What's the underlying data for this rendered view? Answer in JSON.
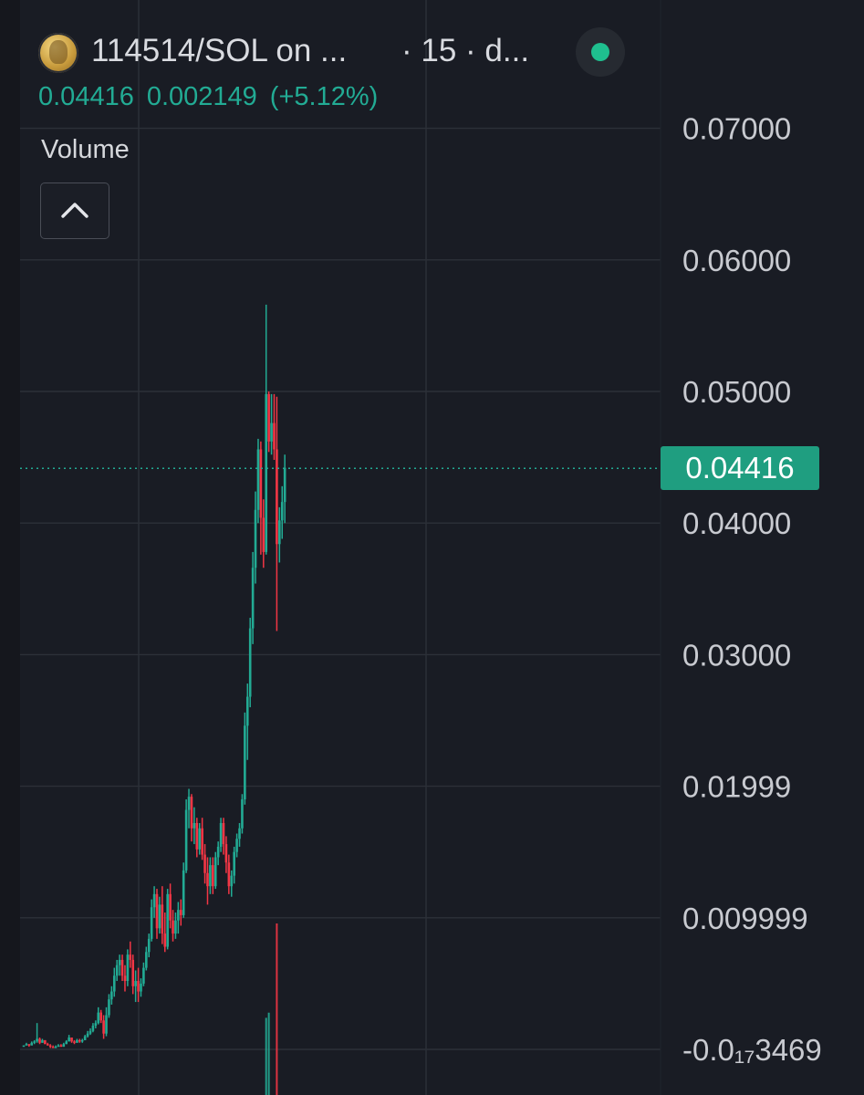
{
  "header": {
    "symbol_title": "114514/SOL on ...",
    "symbol_meta": "· 15 · d...",
    "last_price": "0.04416",
    "change": "0.002149",
    "change_pct": "(+5.12%)",
    "status_color": "#1fbf8f"
  },
  "volume": {
    "label": "Volume",
    "collapse_icon": "chevron-up-icon"
  },
  "current_price_badge": "0.04416",
  "colors": {
    "background": "#191c24",
    "grid": "#2c3038",
    "up": "#22ab94",
    "down": "#f23645",
    "axis_text": "#c8cad0",
    "badge": "#1f9e80"
  },
  "chart_data": {
    "type": "candlestick",
    "y_axis_labels": [
      {
        "value": 0.07,
        "label": "0.07000"
      },
      {
        "value": 0.06,
        "label": "0.06000"
      },
      {
        "value": 0.05,
        "label": "0.05000"
      },
      {
        "value": 0.04,
        "label": "0.04000"
      },
      {
        "value": 0.03,
        "label": "0.03000"
      },
      {
        "value": 0.02,
        "label": "0.01999"
      },
      {
        "value": 0.01,
        "label": "0.009999"
      },
      {
        "value": 0.0,
        "label": "-0.0₁₇3469"
      }
    ],
    "ylim": [
      -0.0006,
      0.0736
    ],
    "last_price": 0.04416,
    "grid": true,
    "candles": [
      [
        0.0002,
        0.0003,
        0.0002,
        0.0003
      ],
      [
        0.0003,
        0.0005,
        0.0003,
        0.0004
      ],
      [
        0.0004,
        0.0004,
        0.0002,
        0.0003
      ],
      [
        0.0003,
        0.0006,
        0.0003,
        0.0005
      ],
      [
        0.0005,
        0.0007,
        0.0004,
        0.0006
      ],
      [
        0.0006,
        0.002,
        0.0005,
        0.0008
      ],
      [
        0.0008,
        0.0009,
        0.0004,
        0.0005
      ],
      [
        0.0005,
        0.0008,
        0.0005,
        0.0007
      ],
      [
        0.0007,
        0.0007,
        0.0004,
        0.0004
      ],
      [
        0.0004,
        0.0005,
        0.0003,
        0.0003
      ],
      [
        0.0003,
        0.0004,
        0.0001,
        0.0002
      ],
      [
        0.0002,
        0.0003,
        0.0001,
        0.0001
      ],
      [
        0.0001,
        0.0003,
        0.0001,
        0.0002
      ],
      [
        0.0002,
        0.0004,
        0.0002,
        0.0003
      ],
      [
        0.0003,
        0.0004,
        0.0002,
        0.0002
      ],
      [
        0.0002,
        0.0005,
        0.0002,
        0.0004
      ],
      [
        0.0004,
        0.0007,
        0.0004,
        0.0006
      ],
      [
        0.0006,
        0.0011,
        0.0006,
        0.0009
      ],
      [
        0.0009,
        0.0009,
        0.0005,
        0.0006
      ],
      [
        0.0006,
        0.0007,
        0.0004,
        0.0005
      ],
      [
        0.0005,
        0.0008,
        0.0005,
        0.0007
      ],
      [
        0.0007,
        0.0008,
        0.0005,
        0.0006
      ],
      [
        0.0006,
        0.0008,
        0.0005,
        0.0007
      ],
      [
        0.0007,
        0.0011,
        0.0007,
        0.001
      ],
      [
        0.001,
        0.0014,
        0.0009,
        0.0012
      ],
      [
        0.0012,
        0.0016,
        0.0011,
        0.0014
      ],
      [
        0.0014,
        0.002,
        0.0013,
        0.0018
      ],
      [
        0.0018,
        0.0022,
        0.0016,
        0.002
      ],
      [
        0.002,
        0.0032,
        0.0019,
        0.0028
      ],
      [
        0.0028,
        0.003,
        0.002,
        0.0022
      ],
      [
        0.0022,
        0.0026,
        0.0008,
        0.0012
      ],
      [
        0.0012,
        0.0032,
        0.001,
        0.0026
      ],
      [
        0.0026,
        0.0042,
        0.0024,
        0.0038
      ],
      [
        0.0038,
        0.0048,
        0.0034,
        0.0044
      ],
      [
        0.0044,
        0.0062,
        0.004,
        0.0056
      ],
      [
        0.0056,
        0.0068,
        0.0052,
        0.0064
      ],
      [
        0.0064,
        0.0072,
        0.0056,
        0.0068
      ],
      [
        0.0068,
        0.0072,
        0.0052,
        0.0056
      ],
      [
        0.0056,
        0.0064,
        0.0044,
        0.0052
      ],
      [
        0.0052,
        0.0076,
        0.0048,
        0.0072
      ],
      [
        0.0072,
        0.0082,
        0.0062,
        0.0068
      ],
      [
        0.0068,
        0.0072,
        0.0042,
        0.0048
      ],
      [
        0.0048,
        0.006,
        0.0036,
        0.0052
      ],
      [
        0.0052,
        0.0062,
        0.0036,
        0.0044
      ],
      [
        0.0044,
        0.0054,
        0.004,
        0.005
      ],
      [
        0.005,
        0.0066,
        0.0048,
        0.0062
      ],
      [
        0.0062,
        0.0078,
        0.006,
        0.0074
      ],
      [
        0.0074,
        0.0088,
        0.007,
        0.0084
      ],
      [
        0.0084,
        0.0114,
        0.0082,
        0.0108
      ],
      [
        0.0108,
        0.0124,
        0.01,
        0.0118
      ],
      [
        0.0118,
        0.0122,
        0.0084,
        0.0092
      ],
      [
        0.0092,
        0.0116,
        0.0088,
        0.011
      ],
      [
        0.011,
        0.0124,
        0.008,
        0.0088
      ],
      [
        0.0088,
        0.0104,
        0.0074,
        0.0078
      ],
      [
        0.0078,
        0.0122,
        0.0076,
        0.0118
      ],
      [
        0.0118,
        0.0126,
        0.0092,
        0.0098
      ],
      [
        0.0098,
        0.0106,
        0.0082,
        0.0088
      ],
      [
        0.0088,
        0.0104,
        0.0084,
        0.0098
      ],
      [
        0.0098,
        0.0112,
        0.0088,
        0.0106
      ],
      [
        0.0106,
        0.0114,
        0.0094,
        0.0102
      ],
      [
        0.0102,
        0.0142,
        0.01,
        0.0136
      ],
      [
        0.0136,
        0.019,
        0.0134,
        0.0182
      ],
      [
        0.0182,
        0.0198,
        0.0168,
        0.0192
      ],
      [
        0.0192,
        0.0194,
        0.0158,
        0.0168
      ],
      [
        0.0168,
        0.0184,
        0.0156,
        0.0172
      ],
      [
        0.0172,
        0.0176,
        0.0146,
        0.0152
      ],
      [
        0.0152,
        0.0172,
        0.0148,
        0.0168
      ],
      [
        0.0168,
        0.0176,
        0.0144,
        0.0148
      ],
      [
        0.0148,
        0.0156,
        0.0126,
        0.0134
      ],
      [
        0.0134,
        0.0146,
        0.011,
        0.0124
      ],
      [
        0.0124,
        0.0146,
        0.0118,
        0.014
      ],
      [
        0.014,
        0.0146,
        0.0118,
        0.0124
      ],
      [
        0.0124,
        0.015,
        0.0122,
        0.0146
      ],
      [
        0.0146,
        0.0158,
        0.014,
        0.0154
      ],
      [
        0.0154,
        0.0176,
        0.015,
        0.0172
      ],
      [
        0.0172,
        0.0176,
        0.0148,
        0.0156
      ],
      [
        0.0156,
        0.0162,
        0.0134,
        0.0142
      ],
      [
        0.0142,
        0.0148,
        0.0118,
        0.0124
      ],
      [
        0.0124,
        0.0136,
        0.0116,
        0.0132
      ],
      [
        0.0132,
        0.0154,
        0.0126,
        0.015
      ],
      [
        0.015,
        0.0164,
        0.0146,
        0.016
      ],
      [
        0.016,
        0.0172,
        0.0154,
        0.0168
      ],
      [
        0.0168,
        0.0194,
        0.0164,
        0.019
      ],
      [
        0.019,
        0.0256,
        0.0186,
        0.0246
      ],
      [
        0.0246,
        0.0278,
        0.022,
        0.0268
      ],
      [
        0.0268,
        0.0328,
        0.026,
        0.032
      ],
      [
        0.032,
        0.0378,
        0.0308,
        0.0366
      ],
      [
        0.0366,
        0.0424,
        0.0354,
        0.041
      ],
      [
        0.041,
        0.0464,
        0.04,
        0.0456
      ],
      [
        0.0456,
        0.0462,
        0.0376,
        0.0404
      ],
      [
        0.0404,
        0.0418,
        0.0366,
        0.0378
      ],
      [
        0.0378,
        0.0566,
        0.0376,
        0.0498
      ],
      [
        0.0498,
        0.05,
        0.0454,
        0.0462
      ],
      [
        0.0462,
        0.0498,
        0.0452,
        0.0476
      ],
      [
        0.0476,
        0.0498,
        0.0448,
        0.0456
      ],
      [
        0.0456,
        0.0496,
        0.0318,
        0.0384
      ],
      [
        0.0384,
        0.0412,
        0.037,
        0.0402
      ],
      [
        0.0402,
        0.0428,
        0.0388,
        0.0416
      ],
      [
        0.0416,
        0.0452,
        0.04,
        0.0442
      ]
    ],
    "volume_bars": [
      {
        "index": 91,
        "value": 0.45,
        "direction": "up"
      },
      {
        "index": 92,
        "value": 0.48,
        "direction": "up"
      },
      {
        "index": 95,
        "value": 1.0,
        "direction": "down"
      }
    ]
  }
}
